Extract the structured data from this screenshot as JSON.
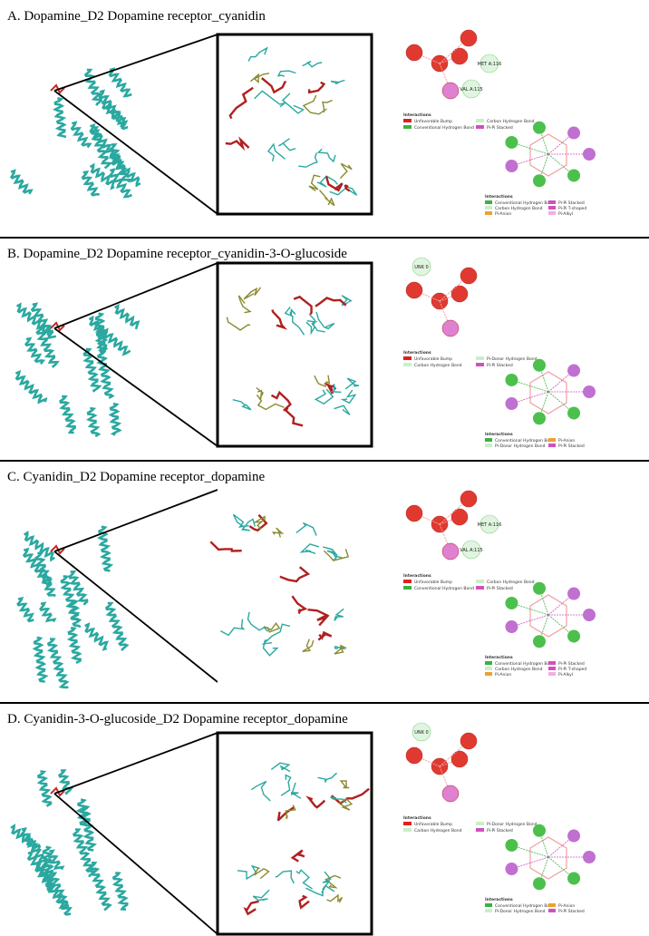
{
  "panels": [
    {
      "title": "A. Dopamine_D2  Dopamine  receptor_cyanidin",
      "residues": [
        "MET A:116",
        "VAL A:115"
      ],
      "legend_top_title": "Interactions",
      "legend_top": [
        "Unfavorable Bump",
        "Conventional Hydrogen Bond",
        "Carbon Hydrogen Bond",
        "Pi-Pi Stacked"
      ],
      "legend_bottom_title": "Interactions",
      "legend_bottom": [
        "Conventional Hydrogen Bond",
        "Carbon Hydrogen Bond",
        "Pi-Anion",
        "Pi-Pi Stacked",
        "Pi-Pi T-shaped",
        "Pi-Alkyl"
      ]
    },
    {
      "title": "B. Dopamine_D2  Dopamine  receptor_cyanidin-3-O-glucoside",
      "residues": [
        "UNK 0"
      ],
      "legend_top_title": "Interactions",
      "legend_top": [
        "Unfavorable Bump",
        "Carbon Hydrogen Bond",
        "Pi-Donor Hydrogen Bond",
        "Pi-Pi Stacked"
      ],
      "legend_bottom_title": "Interactions",
      "legend_bottom": [
        "Conventional Hydrogen Bond",
        "Pi-Donor Hydrogen Bond",
        "Pi-Anion",
        "Pi-Pi Stacked"
      ]
    },
    {
      "title": "C. Cyanidin_D2  Dopamine  receptor_dopamine",
      "residues": [
        "MET A:116",
        "VAL A:115"
      ],
      "legend_top_title": "Interactions",
      "legend_top": [
        "Unfavorable Bump",
        "Conventional Hydrogen Bond",
        "Carbon Hydrogen Bond",
        "Pi-Pi Stacked"
      ],
      "legend_bottom_title": "Interactions",
      "legend_bottom": [
        "Conventional Hydrogen Bond",
        "Carbon Hydrogen Bond",
        "Pi-Anion",
        "Pi-Pi Stacked",
        "Pi-Pi T-shaped",
        "Pi-Alkyl"
      ]
    },
    {
      "title": "D. Cyanidin-3-O-glucoside_D2  Dopamine  receptor_dopamine",
      "residues": [
        "UNK 0"
      ],
      "legend_top_title": "Interactions",
      "legend_top": [
        "Unfavorable Bump",
        "Carbon Hydrogen Bond",
        "Pi-Donor Hydrogen Bond",
        "Pi-Pi Stacked"
      ],
      "legend_bottom_title": "Interactions",
      "legend_bottom": [
        "Conventional Hydrogen Bond",
        "Pi-Donor Hydrogen Bond",
        "Pi-Anion",
        "Pi-Pi Stacked"
      ]
    }
  ]
}
